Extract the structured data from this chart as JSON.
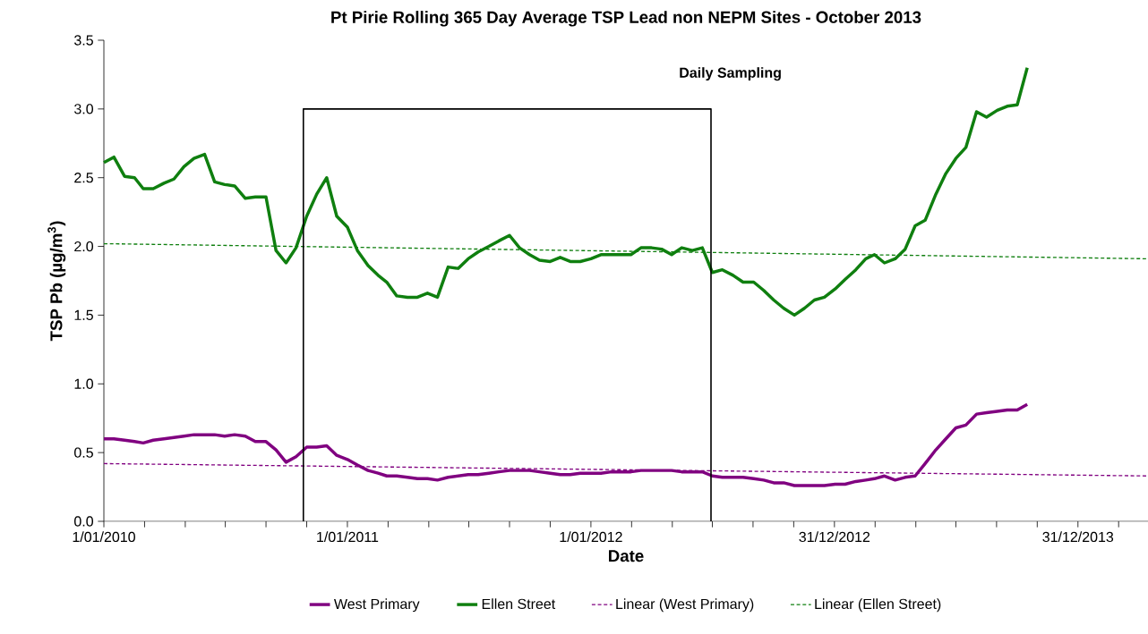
{
  "chart_data": {
    "type": "line",
    "title": "Pt Pirie Rolling 365 Day Average TSP Lead non NEPM Sites - October 2013",
    "xlabel": "Date",
    "ylabel": "TSP Pb (µg/m$^{3}$)",
    "xlim": [
      "2010-01-01",
      "2014-04-15"
    ],
    "xticks": [
      {
        "value": "2010-01-01",
        "label": "1/01/2010"
      },
      {
        "value": "2010-03-03",
        "label": null
      },
      {
        "value": "2010-05-03",
        "label": null
      },
      {
        "value": "2010-07-02",
        "label": null
      },
      {
        "value": "2010-09-01",
        "label": null
      },
      {
        "value": "2010-11-01",
        "label": null
      },
      {
        "value": "2011-01-01",
        "label": "1/01/2011"
      },
      {
        "value": "2011-03-03",
        "label": null
      },
      {
        "value": "2011-05-03",
        "label": null
      },
      {
        "value": "2011-07-02",
        "label": null
      },
      {
        "value": "2011-09-01",
        "label": null
      },
      {
        "value": "2011-11-01",
        "label": null
      },
      {
        "value": "2012-01-01",
        "label": "1/01/2012"
      },
      {
        "value": "2012-03-02",
        "label": null
      },
      {
        "value": "2012-05-02",
        "label": null
      },
      {
        "value": "2012-07-01",
        "label": null
      },
      {
        "value": "2012-08-31",
        "label": null
      },
      {
        "value": "2012-10-31",
        "label": null
      },
      {
        "value": "2012-12-31",
        "label": "31/12/2012"
      },
      {
        "value": "2013-03-02",
        "label": null
      },
      {
        "value": "2013-05-02",
        "label": null
      },
      {
        "value": "2013-07-01",
        "label": null
      },
      {
        "value": "2013-08-31",
        "label": null
      },
      {
        "value": "2013-10-31",
        "label": null
      },
      {
        "value": "2013-12-31",
        "label": "31/12/2013"
      },
      {
        "value": "2014-03-02",
        "label": null
      }
    ],
    "ylim": [
      0,
      3.5
    ],
    "yticks": [
      {
        "value": 0,
        "label": "0.0"
      },
      {
        "value": 0.5,
        "label": "0.5"
      },
      {
        "value": 1,
        "label": "1.0"
      },
      {
        "value": 1.5,
        "label": "1.5"
      },
      {
        "value": 2,
        "label": "2.0"
      },
      {
        "value": 2.5,
        "label": "2.5"
      },
      {
        "value": 3,
        "label": "3.0"
      },
      {
        "value": 3.5,
        "label": "3.5"
      }
    ],
    "x": [
      "2010-01-01",
      "2010-01-16",
      "2010-02-01",
      "2010-02-16",
      "2010-03-01",
      "2010-03-16",
      "2010-04-01",
      "2010-04-16",
      "2010-05-01",
      "2010-05-16",
      "2010-06-01",
      "2010-06-16",
      "2010-07-01",
      "2010-07-16",
      "2010-08-01",
      "2010-08-16",
      "2010-09-01",
      "2010-09-16",
      "2010-10-01",
      "2010-10-16",
      "2010-11-01",
      "2010-11-16",
      "2010-12-01",
      "2010-12-16",
      "2011-01-01",
      "2011-01-16",
      "2011-02-01",
      "2011-02-16",
      "2011-03-01",
      "2011-03-16",
      "2011-04-01",
      "2011-04-16",
      "2011-05-01",
      "2011-05-16",
      "2011-06-01",
      "2011-06-16",
      "2011-07-01",
      "2011-07-16",
      "2011-08-01",
      "2011-08-16",
      "2011-09-01",
      "2011-09-16",
      "2011-10-01",
      "2011-10-16",
      "2011-11-01",
      "2011-11-16",
      "2011-12-01",
      "2011-12-16",
      "2012-01-01",
      "2012-01-16",
      "2012-02-01",
      "2012-02-16",
      "2012-03-01",
      "2012-03-16",
      "2012-04-01",
      "2012-04-16",
      "2012-05-01",
      "2012-05-16",
      "2012-06-01",
      "2012-06-16",
      "2012-07-01",
      "2012-07-16",
      "2012-08-01",
      "2012-08-16",
      "2012-09-01",
      "2012-09-16",
      "2012-10-01",
      "2012-10-16",
      "2012-11-01",
      "2012-11-16",
      "2012-12-01",
      "2012-12-16",
      "2013-01-01",
      "2013-01-16",
      "2013-02-01",
      "2013-02-16",
      "2013-03-01",
      "2013-03-16",
      "2013-04-01",
      "2013-04-16",
      "2013-05-01",
      "2013-05-16",
      "2013-06-01",
      "2013-06-16",
      "2013-07-01",
      "2013-07-16",
      "2013-08-01",
      "2013-08-16",
      "2013-09-01",
      "2013-09-16",
      "2013-10-01",
      "2013-10-16"
    ],
    "series": [
      {
        "name": "West Primary",
        "color": "#800080",
        "line_style": "solid",
        "values": [
          0.6,
          0.6,
          0.59,
          0.58,
          0.57,
          0.59,
          0.6,
          0.61,
          0.62,
          0.63,
          0.63,
          0.63,
          0.62,
          0.63,
          0.62,
          0.58,
          0.58,
          0.52,
          0.43,
          0.47,
          0.54,
          0.54,
          0.55,
          0.48,
          0.45,
          0.41,
          0.37,
          0.35,
          0.33,
          0.33,
          0.32,
          0.31,
          0.31,
          0.3,
          0.32,
          0.33,
          0.34,
          0.34,
          0.35,
          0.36,
          0.37,
          0.37,
          0.37,
          0.36,
          0.35,
          0.34,
          0.34,
          0.35,
          0.35,
          0.35,
          0.36,
          0.36,
          0.36,
          0.37,
          0.37,
          0.37,
          0.37,
          0.36,
          0.36,
          0.36,
          0.33,
          0.32,
          0.32,
          0.32,
          0.31,
          0.3,
          0.28,
          0.28,
          0.26,
          0.26,
          0.26,
          0.26,
          0.27,
          0.27,
          0.29,
          0.3,
          0.31,
          0.33,
          0.3,
          0.32,
          0.33,
          0.42,
          0.52,
          0.6,
          0.68,
          0.7,
          0.78,
          0.79,
          0.8,
          0.81,
          0.81,
          0.85
        ]
      },
      {
        "name": "Ellen Street",
        "color": "#0f7f0f",
        "line_style": "solid",
        "values": [
          2.61,
          2.65,
          2.51,
          2.5,
          2.42,
          2.42,
          2.46,
          2.49,
          2.58,
          2.64,
          2.67,
          2.47,
          2.45,
          2.44,
          2.35,
          2.36,
          2.36,
          1.97,
          1.88,
          1.99,
          2.22,
          2.38,
          2.5,
          2.22,
          2.14,
          1.97,
          1.86,
          1.79,
          1.74,
          1.64,
          1.63,
          1.63,
          1.66,
          1.63,
          1.85,
          1.84,
          1.91,
          1.96,
          2.0,
          2.04,
          2.08,
          1.99,
          1.94,
          1.9,
          1.89,
          1.92,
          1.89,
          1.89,
          1.91,
          1.94,
          1.94,
          1.94,
          1.94,
          1.99,
          1.99,
          1.98,
          1.94,
          1.99,
          1.97,
          1.99,
          1.81,
          1.83,
          1.79,
          1.74,
          1.74,
          1.68,
          1.61,
          1.55,
          1.5,
          1.55,
          1.61,
          1.63,
          1.69,
          1.76,
          1.83,
          1.91,
          1.94,
          1.88,
          1.91,
          1.98,
          2.15,
          2.19,
          2.38,
          2.53,
          2.64,
          2.72,
          2.98,
          2.94,
          2.99,
          3.02,
          3.03,
          3.3
        ]
      },
      {
        "name": "Linear (West Primary)",
        "color": "#800080",
        "line_style": "dashed",
        "x": [
          "2010-01-01",
          "2014-04-15"
        ],
        "values": [
          0.42,
          0.33
        ]
      },
      {
        "name": "Linear (Ellen Street)",
        "color": "#0f7f0f",
        "line_style": "dashed",
        "x": [
          "2010-01-01",
          "2014-04-15"
        ],
        "values": [
          2.02,
          1.91
        ]
      },
      {
        "color": "#000000",
        "line_style": "solid",
        "x": [
          "2010-10-27",
          "2010-10-27",
          "2012-06-29",
          "2012-06-29"
        ],
        "values": [
          0,
          3,
          3,
          0
        ]
      }
    ],
    "annotations": [
      "Daily Sampling"
    ],
    "legend": "bottom"
  }
}
